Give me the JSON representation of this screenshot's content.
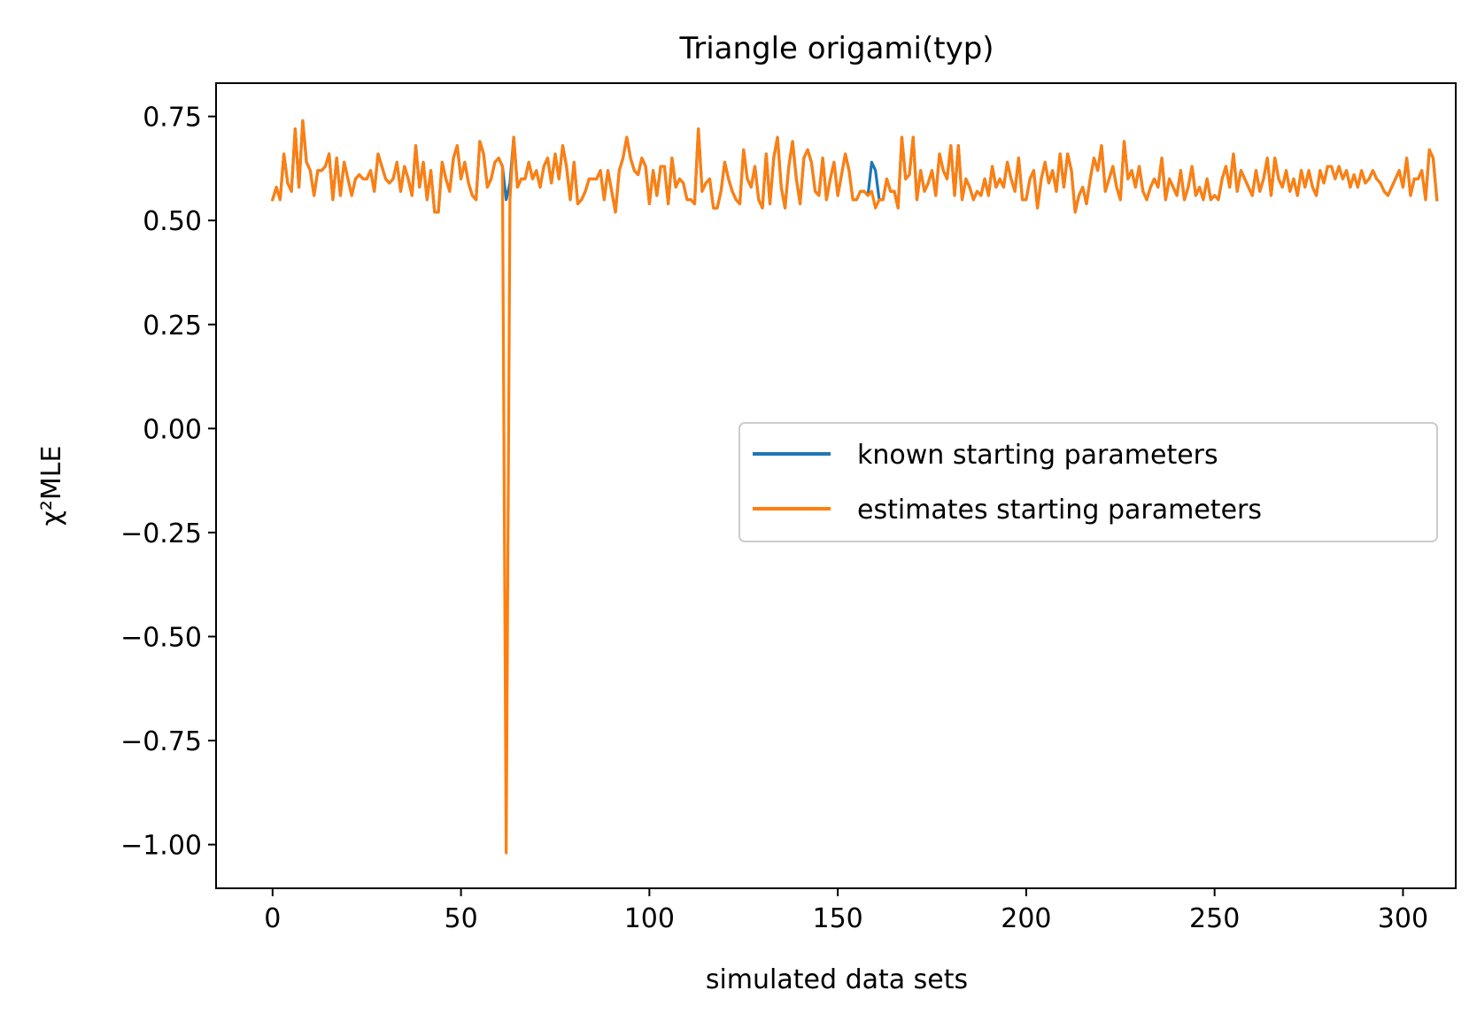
{
  "chart_data": {
    "type": "line",
    "title": "Triangle origami(typ)",
    "xlabel": "simulated data sets",
    "ylabel": "χ²MLE",
    "xlim": [
      -15,
      314
    ],
    "ylim": [
      -1.105,
      0.83
    ],
    "xticks": [
      0,
      50,
      100,
      150,
      200,
      250,
      300
    ],
    "yticks": [
      0.75,
      0.5,
      0.25,
      0.0,
      -0.25,
      -0.5,
      -0.75,
      -1.0
    ],
    "ytick_labels": [
      "0.75",
      "0.50",
      "0.25",
      "0.00",
      "−0.25",
      "−0.50",
      "−0.75",
      "−1.00"
    ],
    "grid": false,
    "legend_position": "center-right",
    "series": [
      {
        "name": "known starting parameters",
        "color": "#1f77b4",
        "values": [
          0.55,
          0.58,
          0.55,
          0.66,
          0.59,
          0.57,
          0.72,
          0.58,
          0.74,
          0.64,
          0.62,
          0.56,
          0.62,
          0.62,
          0.63,
          0.66,
          0.55,
          0.65,
          0.56,
          0.64,
          0.6,
          0.56,
          0.6,
          0.61,
          0.6,
          0.6,
          0.62,
          0.57,
          0.66,
          0.63,
          0.6,
          0.59,
          0.6,
          0.64,
          0.57,
          0.63,
          0.6,
          0.56,
          0.68,
          0.58,
          0.64,
          0.55,
          0.62,
          0.52,
          0.52,
          0.64,
          0.6,
          0.57,
          0.65,
          0.68,
          0.6,
          0.64,
          0.59,
          0.56,
          0.55,
          0.69,
          0.66,
          0.58,
          0.6,
          0.64,
          0.65,
          0.63,
          0.55,
          0.59,
          0.7,
          0.58,
          0.6,
          0.6,
          0.64,
          0.6,
          0.62,
          0.58,
          0.63,
          0.65,
          0.59,
          0.66,
          0.6,
          0.68,
          0.63,
          0.55,
          0.64,
          0.54,
          0.55,
          0.57,
          0.6,
          0.6,
          0.6,
          0.62,
          0.55,
          0.62,
          0.57,
          0.52,
          0.62,
          0.65,
          0.7,
          0.65,
          0.62,
          0.61,
          0.65,
          0.63,
          0.54,
          0.62,
          0.56,
          0.63,
          0.63,
          0.54,
          0.65,
          0.58,
          0.6,
          0.59,
          0.55,
          0.55,
          0.54,
          0.72,
          0.57,
          0.59,
          0.6,
          0.53,
          0.53,
          0.57,
          0.64,
          0.6,
          0.57,
          0.55,
          0.54,
          0.67,
          0.6,
          0.58,
          0.63,
          0.55,
          0.53,
          0.66,
          0.54,
          0.65,
          0.7,
          0.58,
          0.53,
          0.63,
          0.69,
          0.6,
          0.54,
          0.65,
          0.67,
          0.64,
          0.57,
          0.56,
          0.65,
          0.55,
          0.6,
          0.64,
          0.56,
          0.61,
          0.66,
          0.62,
          0.55,
          0.55,
          0.57,
          0.57,
          0.56,
          0.64,
          0.62,
          0.55,
          0.55,
          0.6,
          0.57,
          0.57,
          0.53,
          0.7,
          0.6,
          0.61,
          0.7,
          0.55,
          0.62,
          0.57,
          0.59,
          0.62,
          0.56,
          0.66,
          0.62,
          0.6,
          0.68,
          0.56,
          0.68,
          0.55,
          0.6,
          0.58,
          0.55,
          0.57,
          0.56,
          0.6,
          0.56,
          0.63,
          0.58,
          0.6,
          0.58,
          0.64,
          0.6,
          0.57,
          0.65,
          0.55,
          0.55,
          0.6,
          0.62,
          0.53,
          0.6,
          0.64,
          0.59,
          0.62,
          0.57,
          0.66,
          0.58,
          0.66,
          0.62,
          0.52,
          0.56,
          0.58,
          0.54,
          0.6,
          0.65,
          0.62,
          0.68,
          0.57,
          0.6,
          0.63,
          0.58,
          0.55,
          0.69,
          0.6,
          0.62,
          0.58,
          0.63,
          0.57,
          0.55,
          0.58,
          0.6,
          0.58,
          0.65,
          0.55,
          0.6,
          0.58,
          0.56,
          0.62,
          0.55,
          0.58,
          0.63,
          0.56,
          0.58,
          0.55,
          0.6,
          0.55,
          0.56,
          0.55,
          0.6,
          0.63,
          0.58,
          0.66,
          0.57,
          0.62,
          0.6,
          0.58,
          0.56,
          0.62,
          0.57,
          0.6,
          0.65,
          0.56,
          0.65,
          0.6,
          0.58,
          0.62,
          0.57,
          0.6,
          0.56,
          0.62,
          0.58,
          0.62,
          0.58,
          0.56,
          0.62,
          0.59,
          0.63,
          0.63,
          0.6,
          0.63,
          0.6,
          0.62,
          0.58,
          0.61,
          0.58,
          0.62,
          0.59,
          0.6,
          0.62,
          0.6,
          0.59,
          0.57,
          0.56,
          0.58,
          0.6,
          0.62,
          0.58,
          0.65,
          0.56,
          0.6,
          0.6,
          0.62,
          0.55,
          0.67,
          0.65,
          0.55
        ]
      },
      {
        "name": "estimates starting parameters",
        "color": "#ff7f0e",
        "values": [
          0.55,
          0.58,
          0.55,
          0.66,
          0.59,
          0.57,
          0.72,
          0.58,
          0.74,
          0.64,
          0.62,
          0.56,
          0.62,
          0.62,
          0.63,
          0.66,
          0.55,
          0.65,
          0.56,
          0.64,
          0.6,
          0.56,
          0.6,
          0.61,
          0.6,
          0.6,
          0.62,
          0.57,
          0.66,
          0.63,
          0.6,
          0.59,
          0.6,
          0.64,
          0.57,
          0.63,
          0.6,
          0.56,
          0.68,
          0.58,
          0.64,
          0.55,
          0.62,
          0.52,
          0.52,
          0.64,
          0.6,
          0.57,
          0.65,
          0.68,
          0.6,
          0.64,
          0.59,
          0.56,
          0.55,
          0.69,
          0.66,
          0.58,
          0.6,
          0.64,
          0.65,
          0.63,
          -1.02,
          0.55,
          0.7,
          0.58,
          0.6,
          0.6,
          0.64,
          0.6,
          0.62,
          0.58,
          0.63,
          0.65,
          0.59,
          0.66,
          0.6,
          0.68,
          0.63,
          0.55,
          0.64,
          0.54,
          0.55,
          0.57,
          0.6,
          0.6,
          0.6,
          0.62,
          0.55,
          0.62,
          0.57,
          0.52,
          0.62,
          0.65,
          0.7,
          0.65,
          0.62,
          0.61,
          0.65,
          0.63,
          0.54,
          0.62,
          0.56,
          0.63,
          0.63,
          0.54,
          0.65,
          0.58,
          0.6,
          0.59,
          0.55,
          0.55,
          0.54,
          0.72,
          0.57,
          0.59,
          0.6,
          0.53,
          0.53,
          0.57,
          0.64,
          0.6,
          0.57,
          0.55,
          0.54,
          0.67,
          0.6,
          0.58,
          0.63,
          0.55,
          0.53,
          0.66,
          0.54,
          0.65,
          0.7,
          0.58,
          0.53,
          0.63,
          0.69,
          0.6,
          0.54,
          0.65,
          0.67,
          0.64,
          0.57,
          0.56,
          0.65,
          0.55,
          0.6,
          0.64,
          0.56,
          0.61,
          0.66,
          0.62,
          0.55,
          0.55,
          0.57,
          0.57,
          0.56,
          0.57,
          0.53,
          0.55,
          0.55,
          0.6,
          0.57,
          0.57,
          0.53,
          0.7,
          0.6,
          0.61,
          0.7,
          0.55,
          0.62,
          0.57,
          0.59,
          0.62,
          0.56,
          0.66,
          0.62,
          0.6,
          0.68,
          0.56,
          0.68,
          0.55,
          0.6,
          0.58,
          0.55,
          0.57,
          0.56,
          0.6,
          0.56,
          0.63,
          0.58,
          0.6,
          0.58,
          0.64,
          0.6,
          0.57,
          0.65,
          0.55,
          0.55,
          0.6,
          0.62,
          0.53,
          0.6,
          0.64,
          0.59,
          0.62,
          0.57,
          0.66,
          0.58,
          0.66,
          0.62,
          0.52,
          0.56,
          0.58,
          0.54,
          0.6,
          0.65,
          0.62,
          0.68,
          0.57,
          0.6,
          0.63,
          0.58,
          0.55,
          0.69,
          0.6,
          0.62,
          0.58,
          0.63,
          0.57,
          0.55,
          0.58,
          0.6,
          0.58,
          0.65,
          0.55,
          0.6,
          0.58,
          0.56,
          0.62,
          0.55,
          0.58,
          0.63,
          0.56,
          0.58,
          0.55,
          0.6,
          0.55,
          0.56,
          0.55,
          0.6,
          0.63,
          0.58,
          0.66,
          0.57,
          0.62,
          0.6,
          0.58,
          0.56,
          0.62,
          0.57,
          0.6,
          0.65,
          0.56,
          0.65,
          0.6,
          0.58,
          0.62,
          0.57,
          0.6,
          0.56,
          0.62,
          0.58,
          0.62,
          0.58,
          0.56,
          0.62,
          0.59,
          0.63,
          0.63,
          0.6,
          0.63,
          0.6,
          0.62,
          0.58,
          0.61,
          0.58,
          0.62,
          0.59,
          0.6,
          0.62,
          0.6,
          0.59,
          0.57,
          0.56,
          0.58,
          0.6,
          0.62,
          0.58,
          0.65,
          0.56,
          0.6,
          0.6,
          0.62,
          0.55,
          0.67,
          0.65,
          0.55
        ]
      }
    ]
  }
}
